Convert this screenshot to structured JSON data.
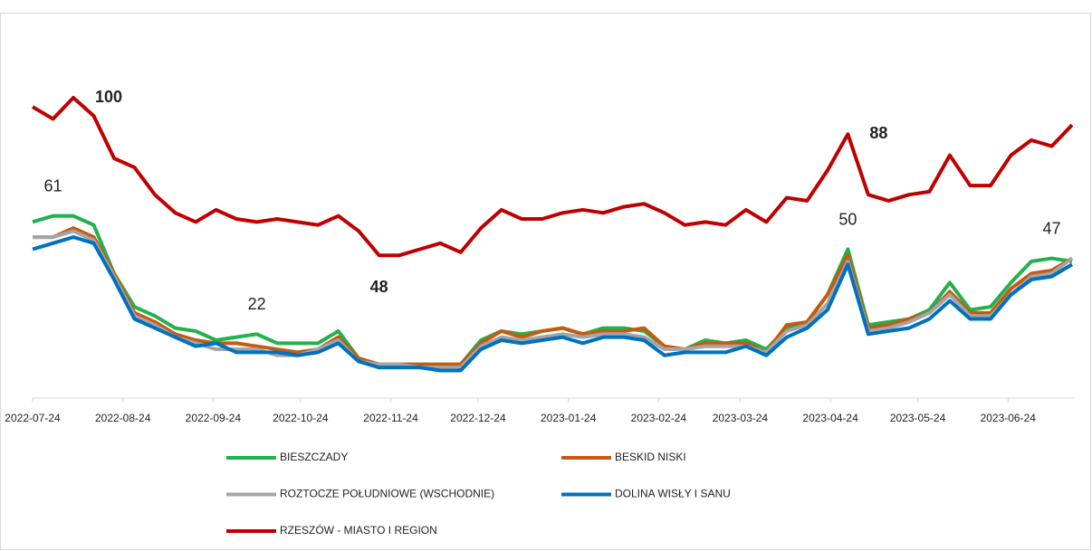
{
  "chart_data": {
    "type": "line",
    "x": [
      "2022-07-24",
      "2022-07-31",
      "2022-08-07",
      "2022-08-14",
      "2022-08-21",
      "2022-08-28",
      "2022-09-04",
      "2022-09-11",
      "2022-09-18",
      "2022-09-25",
      "2022-10-02",
      "2022-10-09",
      "2022-10-16",
      "2022-10-23",
      "2022-10-30",
      "2022-11-06",
      "2022-11-13",
      "2022-11-20",
      "2022-11-27",
      "2022-12-04",
      "2022-12-11",
      "2022-12-18",
      "2022-12-25",
      "2023-01-01",
      "2023-01-08",
      "2023-01-15",
      "2023-01-22",
      "2023-01-29",
      "2023-02-05",
      "2023-02-12",
      "2023-02-19",
      "2023-02-26",
      "2023-03-05",
      "2023-03-12",
      "2023-03-19",
      "2023-03-26",
      "2023-04-02",
      "2023-04-09",
      "2023-04-16",
      "2023-04-23",
      "2023-04-30",
      "2023-05-07",
      "2023-05-14",
      "2023-05-21",
      "2023-05-28",
      "2023-06-04",
      "2023-06-11",
      "2023-06-18",
      "2023-06-25",
      "2023-07-02",
      "2023-07-09",
      "2023-07-16"
    ],
    "xlim": [
      "2022-07-24",
      "2023-07-16"
    ],
    "xticks": [
      "2022-07-24",
      "2022-08-24",
      "2022-09-24",
      "2022-10-24",
      "2022-11-24",
      "2022-12-24",
      "2023-01-24",
      "2023-02-24",
      "2023-03-24",
      "2023-04-24",
      "2023-05-24",
      "2023-06-24"
    ],
    "ylim": [
      0,
      120
    ],
    "series": [
      {
        "name": "BIESZCZADY",
        "color": "#22b14c",
        "label_weight": "normal",
        "values": [
          59,
          61,
          61,
          58,
          42,
          31,
          28,
          24,
          23,
          20,
          21,
          22,
          19,
          19,
          19,
          23,
          14,
          12,
          12,
          12,
          12,
          12,
          20,
          23,
          22,
          23,
          24,
          22,
          24,
          24,
          23,
          18,
          17,
          20,
          19,
          20,
          17,
          24,
          26,
          35,
          50,
          25,
          26,
          27,
          30,
          39,
          30,
          31,
          39,
          46,
          47,
          46
        ],
        "value_labels": [
          null,
          "61",
          null,
          null,
          null,
          null,
          null,
          null,
          null,
          null,
          null,
          "22",
          null,
          null,
          null,
          null,
          null,
          null,
          null,
          null,
          null,
          null,
          null,
          null,
          null,
          null,
          null,
          null,
          null,
          null,
          null,
          null,
          null,
          null,
          null,
          null,
          null,
          null,
          null,
          null,
          "50",
          null,
          null,
          null,
          null,
          null,
          null,
          null,
          null,
          null,
          "47",
          null
        ]
      },
      {
        "name": "BESKID NISKI",
        "color": "#c55a11",
        "label_weight": "normal",
        "values": [
          54,
          54,
          57,
          54,
          42,
          29,
          26,
          22,
          20,
          19,
          19,
          18,
          17,
          16,
          17,
          21,
          14,
          12,
          12,
          12,
          12,
          12,
          19,
          23,
          21,
          23,
          24,
          22,
          23,
          23,
          24,
          18,
          17,
          19,
          19,
          19,
          16,
          25,
          26,
          35,
          48,
          24,
          25,
          27,
          29,
          36,
          29,
          29,
          37,
          42,
          43,
          47
        ]
      },
      {
        "name": "ROZTOCZE POŁUDNIOWE (WSCHODNIE)",
        "color": "#a5a5a5",
        "label_weight": "normal",
        "values": [
          54,
          54,
          56,
          53,
          41,
          28,
          25,
          21,
          19,
          17,
          17,
          17,
          15,
          15,
          17,
          20,
          13,
          12,
          12,
          11,
          11,
          11,
          18,
          21,
          20,
          21,
          22,
          21,
          22,
          22,
          21,
          17,
          17,
          18,
          18,
          18,
          16,
          23,
          25,
          32,
          46,
          23,
          24,
          26,
          29,
          35,
          28,
          28,
          35,
          41,
          42,
          47
        ]
      },
      {
        "name": "DOLINA WISŁY I SANU",
        "color": "#0070c0",
        "label_weight": "normal",
        "values": [
          50,
          52,
          54,
          52,
          40,
          27,
          24,
          21,
          18,
          19,
          16,
          16,
          16,
          15,
          16,
          19,
          13,
          11,
          11,
          11,
          10,
          10,
          17,
          20,
          19,
          20,
          21,
          19,
          21,
          21,
          20,
          15,
          16,
          16,
          16,
          18,
          15,
          21,
          24,
          30,
          45,
          22,
          23,
          24,
          27,
          33,
          27,
          27,
          35,
          40,
          41,
          45
        ]
      },
      {
        "name": "RZESZÓW - MIASTO I REGION",
        "color": "#c00000",
        "label_weight": "bold",
        "values": [
          97,
          93,
          100,
          94,
          80,
          77,
          68,
          62,
          59,
          63,
          60,
          59,
          60,
          59,
          58,
          61,
          56,
          48,
          48,
          50,
          52,
          49,
          57,
          63,
          60,
          60,
          62,
          63,
          62,
          64,
          65,
          62,
          58,
          59,
          58,
          63,
          59,
          67,
          66,
          76,
          88,
          68,
          66,
          68,
          69,
          81,
          71,
          71,
          81,
          86,
          84,
          91
        ],
        "value_labels": [
          null,
          null,
          "100",
          null,
          null,
          null,
          null,
          null,
          null,
          null,
          null,
          null,
          null,
          null,
          null,
          null,
          null,
          "48",
          null,
          null,
          null,
          null,
          null,
          null,
          null,
          null,
          null,
          null,
          null,
          null,
          null,
          null,
          null,
          null,
          null,
          null,
          null,
          null,
          null,
          null,
          "88",
          null,
          null,
          null,
          null,
          null,
          null,
          null,
          null,
          null,
          null,
          null
        ]
      }
    ]
  }
}
